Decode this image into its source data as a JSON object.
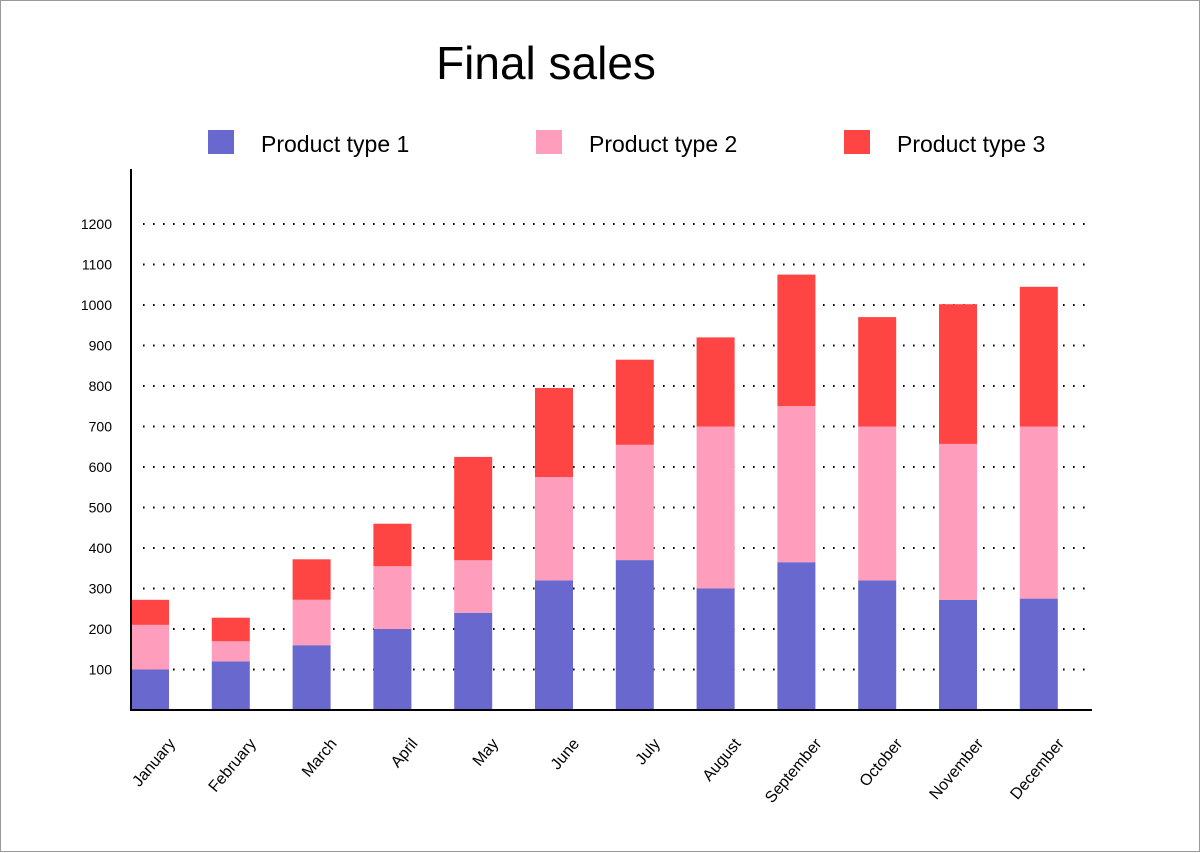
{
  "chart_data": {
    "type": "bar",
    "stacked": true,
    "title": "Final sales",
    "xlabel": "",
    "ylabel": "",
    "ylim": [
      0,
      1300
    ],
    "yticks": [
      100,
      200,
      300,
      400,
      500,
      600,
      700,
      800,
      900,
      1000,
      1100,
      1200
    ],
    "grid": "horizontal-dotted",
    "legend_position": "top",
    "categories": [
      "January",
      "February",
      "March",
      "April",
      "May",
      "June",
      "July",
      "August",
      "September",
      "October",
      "November",
      "December"
    ],
    "series": [
      {
        "name": "Product type 1",
        "color": "#6868cf",
        "values": [
          100,
          120,
          160,
          200,
          240,
          320,
          370,
          300,
          365,
          320,
          272,
          275
        ]
      },
      {
        "name": "Product type 2",
        "color": "#ff9dbd",
        "values": [
          110,
          50,
          112,
          155,
          130,
          255,
          285,
          400,
          385,
          380,
          385,
          425
        ]
      },
      {
        "name": "Product type 3",
        "color": "#ff4444",
        "values": [
          62,
          58,
          100,
          105,
          255,
          220,
          210,
          220,
          325,
          270,
          345,
          345
        ]
      }
    ]
  }
}
